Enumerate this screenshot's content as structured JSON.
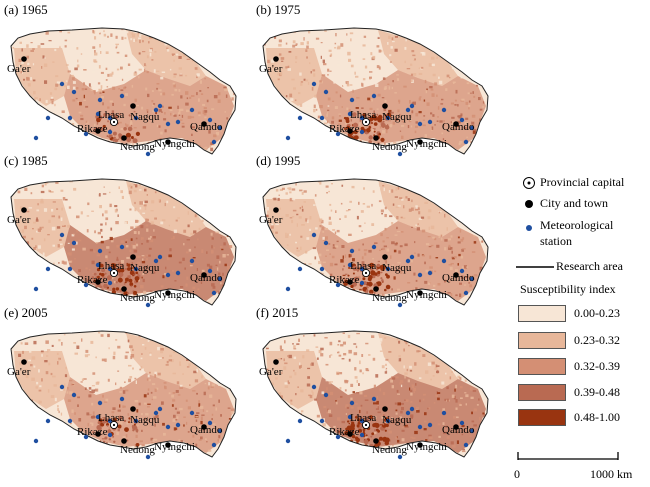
{
  "panels": [
    {
      "label": "(a) 1965",
      "intensity": 0.3
    },
    {
      "label": "(b) 1975",
      "intensity": 0.55
    },
    {
      "label": "(c) 1985",
      "intensity": 0.65
    },
    {
      "label": "(d) 1995",
      "intensity": 0.55
    },
    {
      "label": "(e) 2005",
      "intensity": 0.4
    },
    {
      "label": "(f) 2015",
      "intensity": 0.85
    }
  ],
  "cities": {
    "gaer": "Ga'er",
    "lhasa": "Lhasa",
    "nagqu": "Nagqu",
    "rikaze": "Rikaze",
    "nedong": "Nedong",
    "nyingchi": "Nyingchi",
    "qamdo": "Qamdo"
  },
  "legend": {
    "provincial_capital": "Provincial capital",
    "city_and_town": "City and town",
    "meteorological_station_line1": "Meteorological",
    "meteorological_station_line2": "station",
    "research_area": "Research area",
    "susceptibility_title": "Susceptibility index",
    "classes": [
      {
        "label": "0.00-0.23",
        "color": "#f7e6d6"
      },
      {
        "label": "0.23-0.32",
        "color": "#e8b79a"
      },
      {
        "label": "0.32-0.39",
        "color": "#d48f74"
      },
      {
        "label": "0.39-0.48",
        "color": "#b96a52"
      },
      {
        "label": "0.48-1.00",
        "color": "#993410"
      }
    ],
    "scale_start": "0",
    "scale_end": "1000 km"
  },
  "colors": {
    "station": "#1f4fa0",
    "outline": "#222222"
  }
}
